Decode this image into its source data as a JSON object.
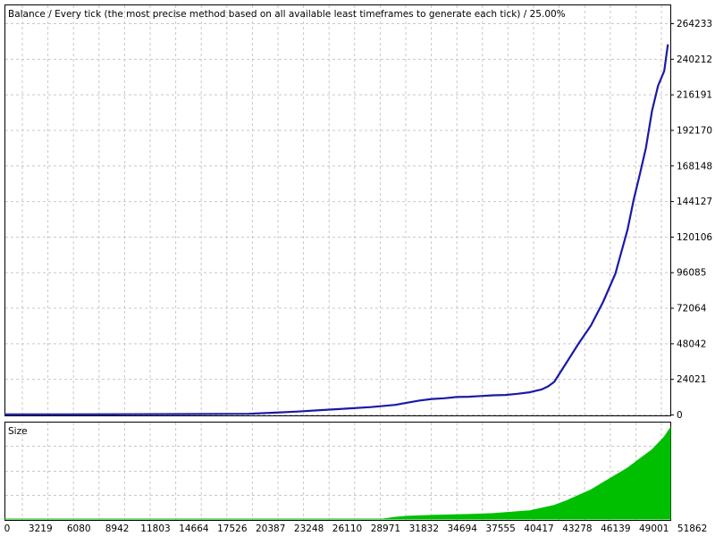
{
  "chart_data": [
    {
      "type": "line",
      "title": "Balance / Every tick (the most precise method based on all available least timeframes to generate each tick) / 25.00%",
      "x_ticks": [
        "0",
        "3219",
        "6080",
        "8942",
        "11803",
        "14664",
        "17526",
        "20387",
        "23248",
        "26110",
        "28971",
        "31832",
        "34694",
        "37555",
        "40417",
        "43278",
        "46139",
        "49001",
        "51862"
      ],
      "y_ticks": [
        "264233",
        "240212",
        "216191",
        "192170",
        "168148",
        "144127",
        "120106",
        "96085",
        "72064",
        "48042",
        "24021",
        "0"
      ],
      "ylim": [
        0,
        264233
      ],
      "xlim": [
        0,
        54500
      ],
      "grid": true,
      "colors": {
        "line": "#1a1aa6",
        "grid": "#c8c8c8",
        "frame": "#000000"
      },
      "series": [
        {
          "x": [
            0,
            5000,
            10000,
            15000,
            20000,
            22000,
            24000,
            26000,
            28000,
            30000,
            32000,
            33000,
            34000,
            35000,
            36000,
            37000,
            38000,
            39000,
            40000,
            41000,
            42000,
            43000,
            44000,
            44500,
            45000,
            46000,
            47000,
            48000,
            49000,
            50000,
            51000,
            51500,
            52000,
            52500,
            53000,
            53500,
            54000,
            54300
          ],
          "y": [
            100,
            150,
            200,
            300,
            500,
            1200,
            2000,
            3000,
            4000,
            5000,
            6500,
            8000,
            9500,
            10500,
            11000,
            11800,
            12000,
            12500,
            13000,
            13200,
            14000,
            15000,
            17000,
            19000,
            22000,
            35000,
            48000,
            60000,
            76000,
            95000,
            125000,
            145000,
            162000,
            180000,
            205000,
            222000,
            232000,
            250000
          ]
        }
      ]
    },
    {
      "type": "area",
      "title": "Size",
      "ylim": [
        0,
        1
      ],
      "colors": {
        "fill": "#00bf00"
      },
      "series": [
        {
          "x": [
            0,
            31000,
            32000,
            33000,
            35000,
            38000,
            40000,
            42000,
            43000,
            44000,
            45000,
            46000,
            47000,
            48000,
            49000,
            50000,
            51000,
            52000,
            53000,
            54000,
            54500
          ],
          "y": [
            0,
            0,
            0.02,
            0.03,
            0.04,
            0.05,
            0.06,
            0.08,
            0.09,
            0.12,
            0.15,
            0.2,
            0.26,
            0.32,
            0.4,
            0.48,
            0.56,
            0.66,
            0.76,
            0.9,
            1.0
          ]
        }
      ]
    }
  ]
}
